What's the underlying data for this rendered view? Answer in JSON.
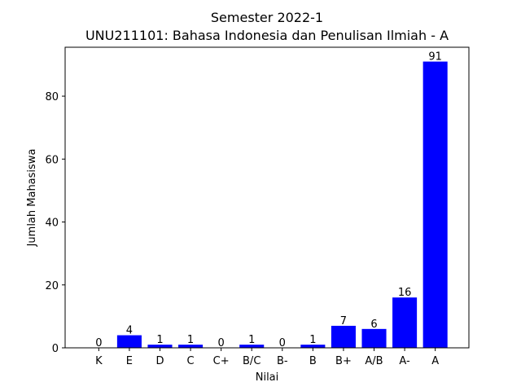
{
  "chart_data": {
    "type": "bar",
    "title": "Semester 2022-1",
    "subtitle": "UNU211101: Bahasa Indonesia dan Penulisan Ilmiah - A",
    "xlabel": "Nilai",
    "ylabel": "Jumlah Mahasiswa",
    "categories": [
      "K",
      "E",
      "D",
      "C",
      "C+",
      "B/C",
      "B-",
      "B",
      "B+",
      "A/B",
      "A-",
      "A"
    ],
    "values": [
      0,
      4,
      1,
      1,
      0,
      1,
      0,
      1,
      7,
      6,
      16,
      91
    ],
    "ylim": [
      0,
      95.55
    ],
    "yticks": [
      0,
      20,
      40,
      60,
      80
    ],
    "bar_color": "#0000ff",
    "grid": false,
    "legend": "none"
  }
}
